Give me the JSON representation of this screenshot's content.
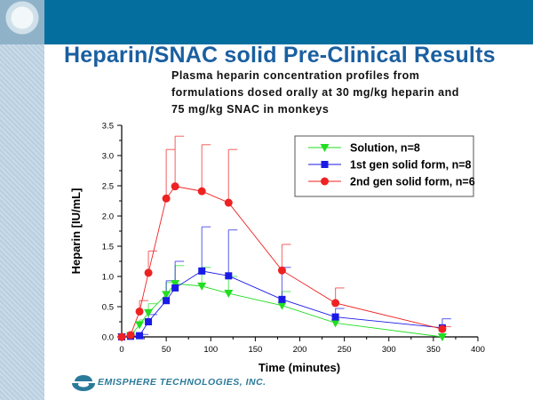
{
  "slide": {
    "title": "Heparin/SNAC solid Pre-Clinical Results",
    "subtitle_lines": [
      "Plasma heparin concentration profiles from",
      "formulations dosed orally at 30 mg/kg heparin and",
      "75 mg/kg SNAC in monkeys"
    ],
    "company": "EMISPHERE TECHNOLOGIES, INC.",
    "colors": {
      "header_bar": "#046f9f",
      "title": "#1a5fa0",
      "logo": "#2a7a9a"
    }
  },
  "chart_data": {
    "type": "line",
    "title": "Plasma heparin concentration profiles from formulations dosed orally at 30 mg/kg heparin and 75 mg/kg SNAC in monkeys",
    "xlabel": "Time (minutes)",
    "ylabel": "Heparin [IU/mL]",
    "xlim": [
      0,
      400
    ],
    "ylim": [
      0,
      3.5
    ],
    "xticks": [
      0,
      50,
      100,
      150,
      200,
      250,
      300,
      350,
      400
    ],
    "xtick_labels": [
      "0",
      "50",
      "100",
      "150",
      "200",
      "250",
      "300",
      "350",
      "400"
    ],
    "yticks": [
      0,
      0.5,
      1.0,
      1.5,
      2.0,
      2.5,
      3.0,
      3.5
    ],
    "ytick_labels": [
      "0.0",
      "0.5",
      "1.0",
      "1.5",
      "2.0",
      "2.5",
      "3.0",
      "3.5"
    ],
    "grid": false,
    "legend_position": "top-right",
    "series": [
      {
        "name": "Solution, n=8",
        "color": "#22dd22",
        "marker": "triangle-down",
        "x": [
          0,
          10,
          20,
          30,
          50,
          60,
          90,
          120,
          180,
          240,
          360
        ],
        "values": [
          0.0,
          0.02,
          0.2,
          0.4,
          0.7,
          0.88,
          0.84,
          0.72,
          0.52,
          0.23,
          0.0
        ],
        "error_upper": [
          0.0,
          0.04,
          0.28,
          0.55,
          0.9,
          1.18,
          1.15,
          1.0,
          0.75,
          0.0,
          0.0
        ]
      },
      {
        "name": "1st gen solid form, n=8",
        "color": "#1a1ae6",
        "marker": "square",
        "x": [
          0,
          10,
          20,
          30,
          50,
          60,
          90,
          120,
          180,
          240,
          360
        ],
        "values": [
          0.0,
          0.01,
          0.02,
          0.25,
          0.6,
          0.81,
          1.09,
          1.01,
          0.62,
          0.33,
          0.15
        ],
        "error_upper": [
          0.0,
          0.02,
          0.04,
          0.37,
          0.93,
          1.25,
          1.82,
          1.77,
          1.15,
          0.47,
          0.3
        ]
      },
      {
        "name": "2nd gen solid form, n=6",
        "color": "#ee2222",
        "marker": "circle",
        "x": [
          0,
          10,
          20,
          30,
          50,
          60,
          90,
          120,
          180,
          240,
          360
        ],
        "values": [
          0.0,
          0.03,
          0.42,
          1.06,
          2.29,
          2.49,
          2.41,
          2.22,
          1.1,
          0.56,
          0.13
        ],
        "error_upper": [
          0.0,
          0.04,
          0.6,
          1.42,
          3.1,
          3.32,
          3.18,
          3.1,
          1.53,
          0.81,
          0.17
        ]
      }
    ]
  }
}
